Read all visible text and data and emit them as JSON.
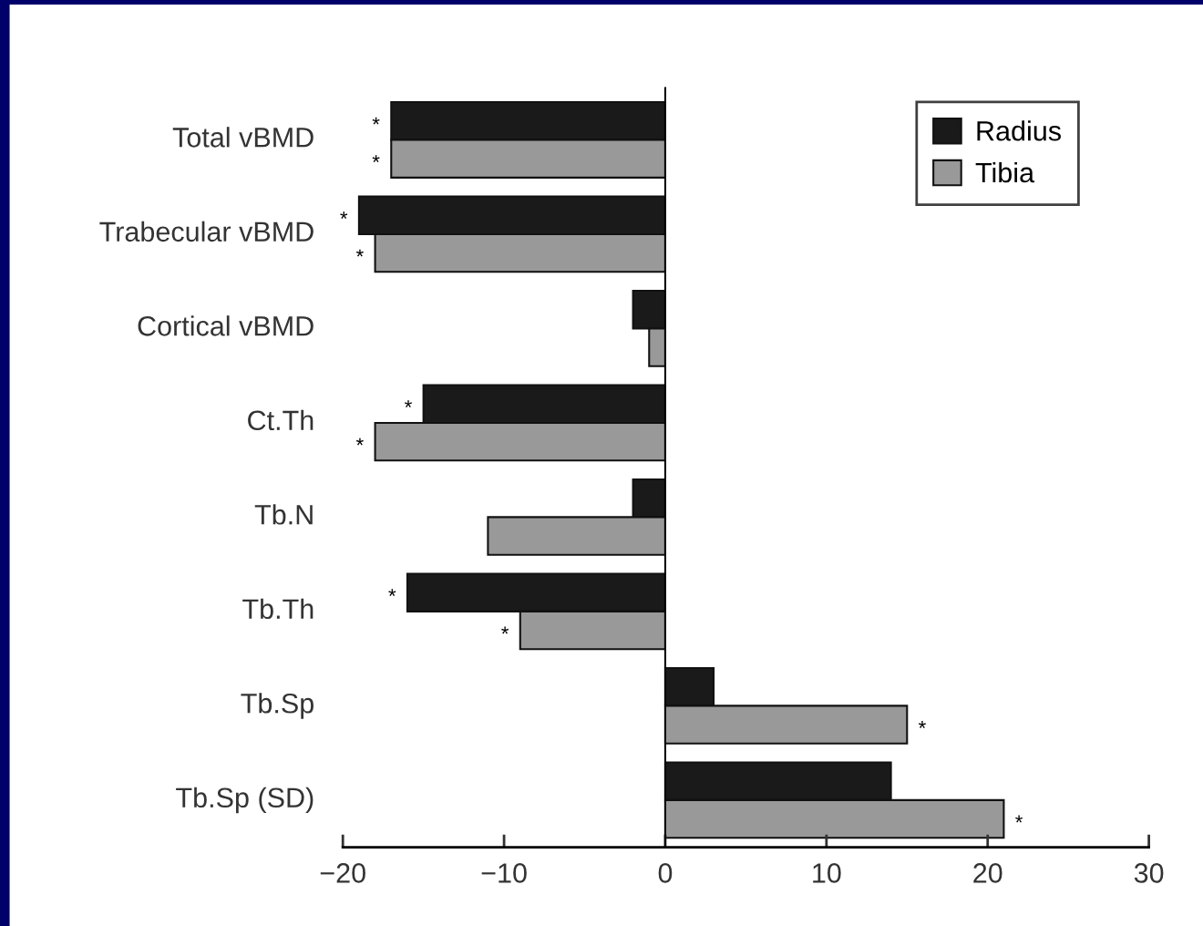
{
  "chart_data": {
    "type": "bar",
    "orientation": "horizontal",
    "categories": [
      "Total vBMD",
      "Trabecular vBMD",
      "Cortical vBMD",
      "Ct.Th",
      "Tb.N",
      "Tb.Th",
      "Tb.Sp",
      "Tb.Sp (SD)"
    ],
    "series": [
      {
        "name": "Radius",
        "color": "#1a1a1a",
        "values": [
          -17,
          -19,
          -2,
          -15,
          -2,
          -16,
          3,
          14
        ],
        "value_labels": [
          "*",
          "*",
          null,
          "*",
          null,
          "*",
          null,
          null
        ]
      },
      {
        "name": "Tibia",
        "color": "#999999",
        "values": [
          -17,
          -18,
          -1,
          -18,
          -11,
          -9,
          15,
          21
        ],
        "value_labels": [
          "*",
          "*",
          null,
          "*",
          null,
          "*",
          "*",
          "*"
        ]
      }
    ],
    "xlim": [
      -20,
      30
    ],
    "xticks": [
      {
        "value": -20,
        "label": "−20"
      },
      {
        "value": -10,
        "label": "−10"
      },
      0,
      10,
      20,
      30
    ],
    "legend": "top right"
  }
}
